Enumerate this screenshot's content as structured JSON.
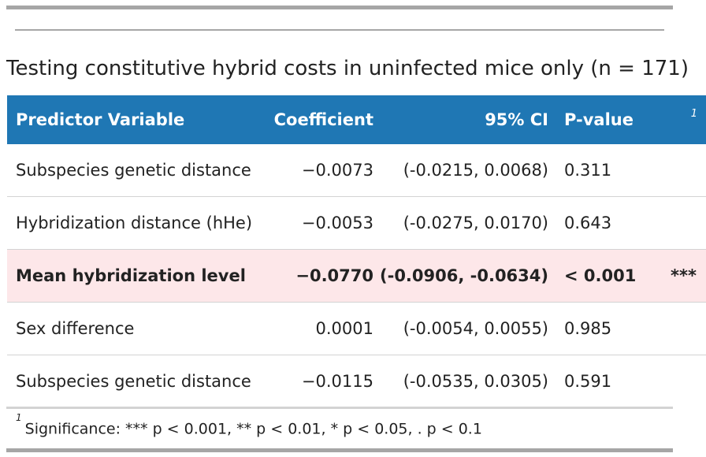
{
  "table": {
    "title": "Testing constitutive hybrid costs in uninfected mice only (n = 171)",
    "headers": {
      "predictor": "Predictor Variable",
      "coefficient": "Coefficient",
      "ci": "95% CI",
      "pvalue": "P-value",
      "footnote_mark": "1"
    },
    "rows": [
      {
        "predictor": "Subspecies genetic distance",
        "coefficient": "−0.0073",
        "ci": "(-0.0215, 0.0068)",
        "pvalue": "0.311",
        "sig": ""
      },
      {
        "predictor": "Hybridization distance (hHe)",
        "coefficient": "−0.0053",
        "ci": "(-0.0275, 0.0170)",
        "pvalue": "0.643",
        "sig": ""
      },
      {
        "predictor": "Mean hybridization level",
        "coefficient": "−0.0770",
        "ci": "(-0.0906, -0.0634)",
        "pvalue": "< 0.001",
        "sig": "***"
      },
      {
        "predictor": "Sex difference",
        "coefficient": "0.0001",
        "ci": "(-0.0054, 0.0055)",
        "pvalue": "0.985",
        "sig": ""
      },
      {
        "predictor": "Subspecies genetic distance",
        "coefficient": "−0.0115",
        "ci": "(-0.0535, 0.0305)",
        "pvalue": "0.591",
        "sig": ""
      }
    ],
    "footnote": {
      "mark": "1",
      "text": "Significance: *** p < 0.001, ** p < 0.01, * p < 0.05, . p < 0.1"
    },
    "colors": {
      "header_bg": "#1f77b4",
      "highlight_bg": "#fde7e9"
    }
  }
}
